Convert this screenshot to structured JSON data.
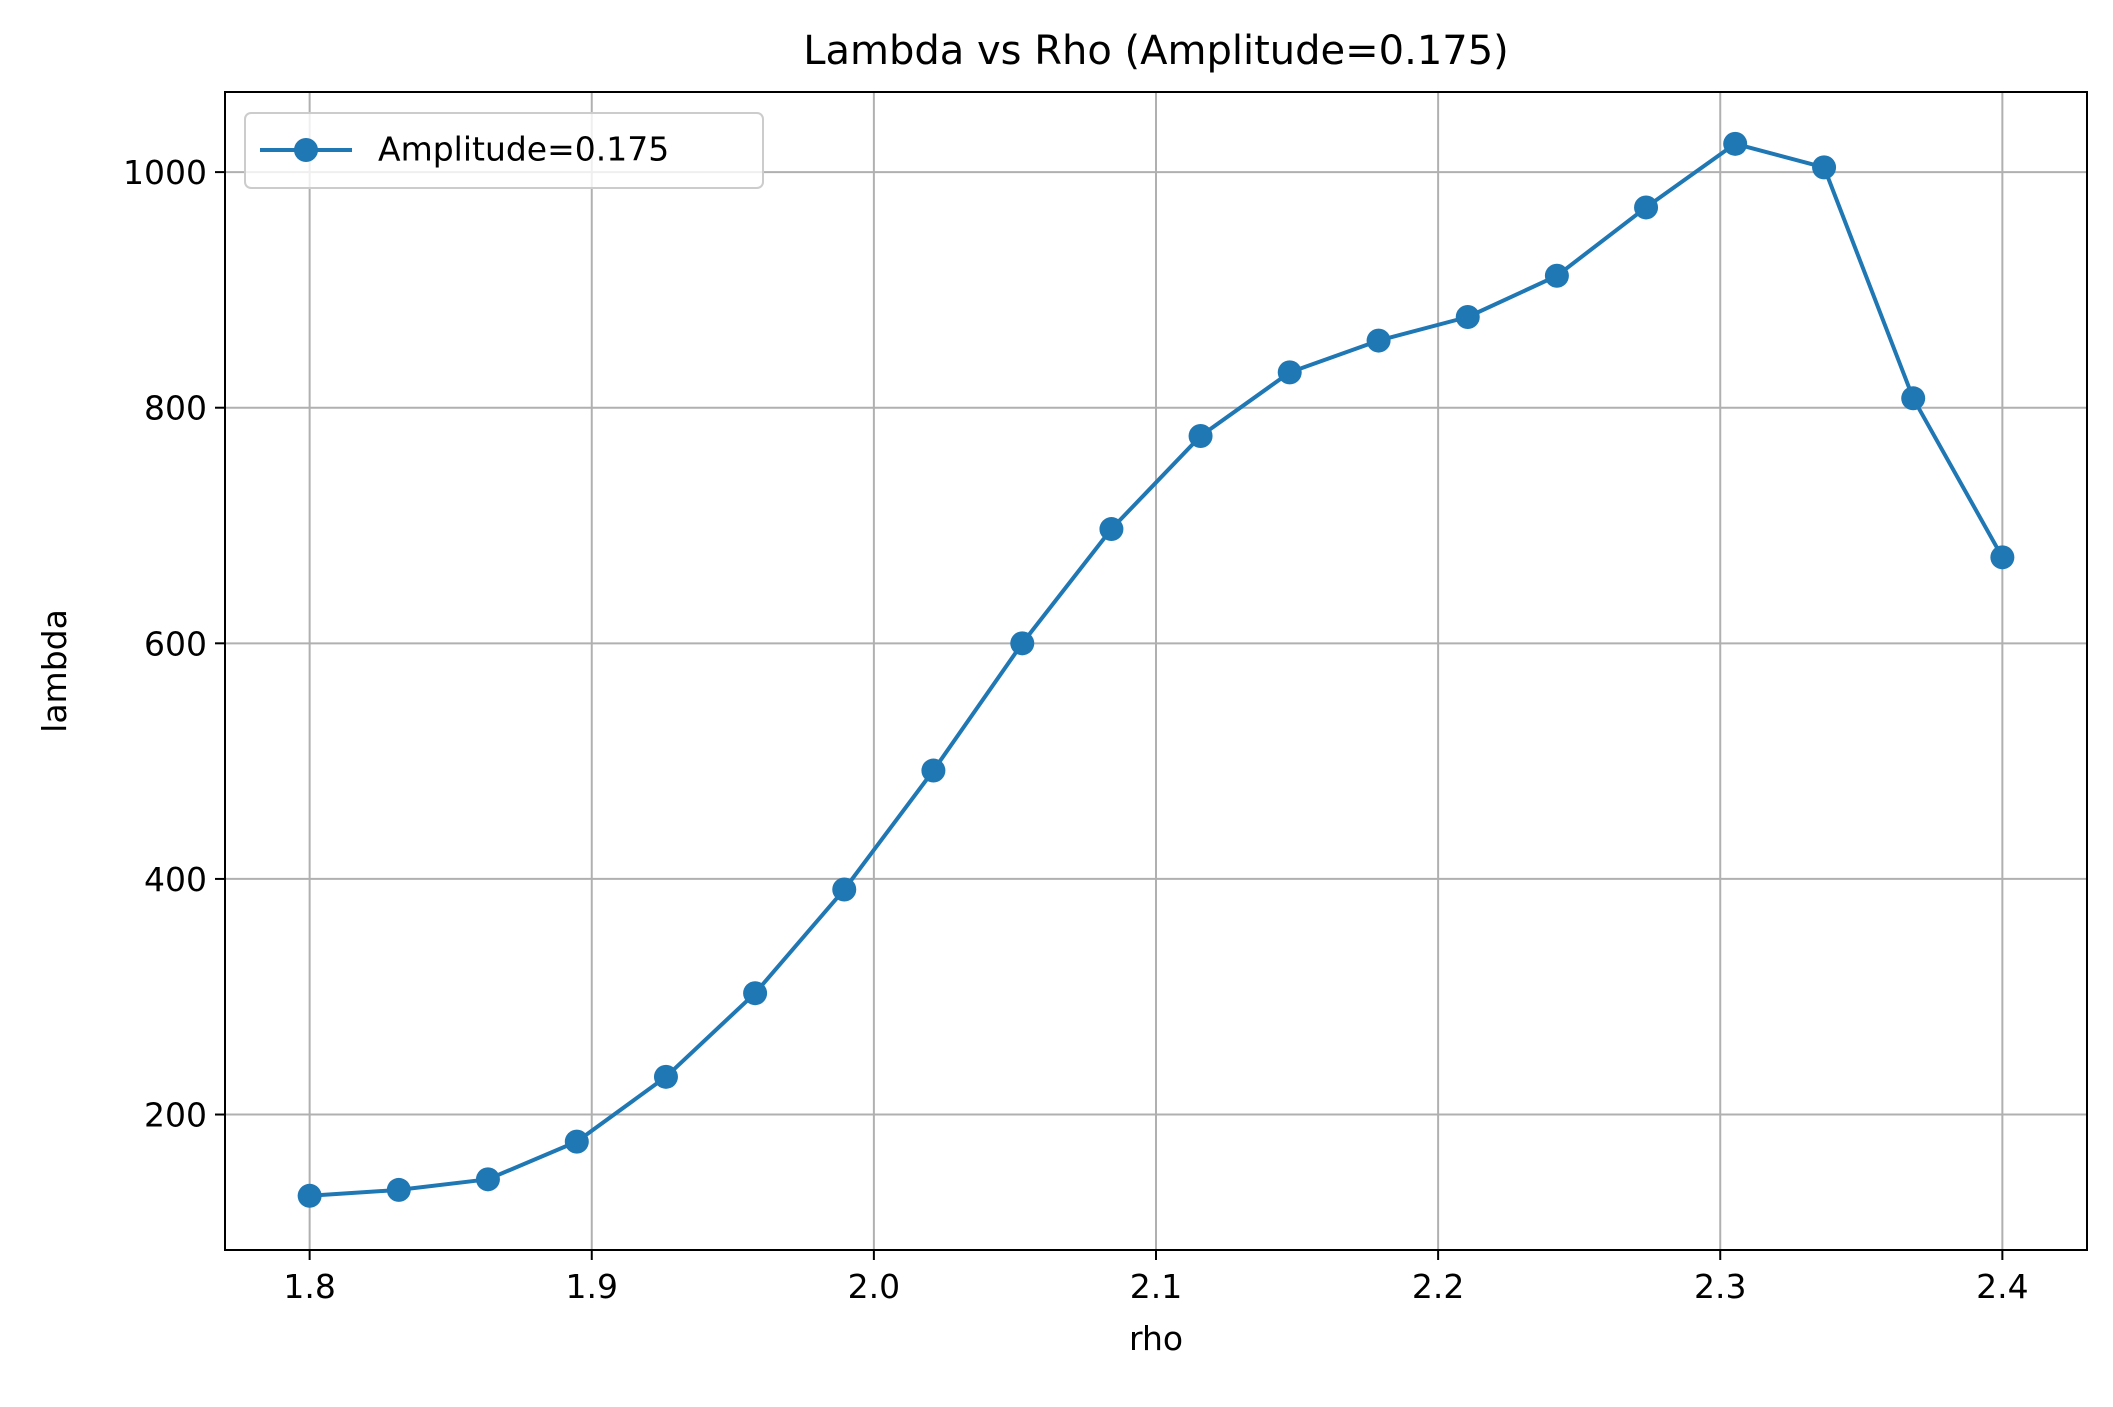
{
  "chart_data": {
    "type": "line",
    "title": "Lambda vs Rho (Amplitude=0.175)",
    "xlabel": "rho",
    "ylabel": "lambda",
    "xlim": [
      1.77,
      2.43
    ],
    "ylim": [
      85,
      1068
    ],
    "xticks": [
      1.8,
      1.9,
      2.0,
      2.1,
      2.2,
      2.3,
      2.4
    ],
    "xtick_labels": [
      "1.8",
      "1.9",
      "2.0",
      "2.1",
      "2.2",
      "2.3",
      "2.4"
    ],
    "yticks": [
      200,
      400,
      600,
      800,
      1000
    ],
    "ytick_labels": [
      "200",
      "400",
      "600",
      "800",
      "1000"
    ],
    "grid": true,
    "legend_position": "top-left",
    "series": [
      {
        "name": "Amplitude=0.175",
        "color": "#1f77b4",
        "marker": "circle",
        "x": [
          1.8,
          1.8316,
          1.8632,
          1.8947,
          1.9263,
          1.9579,
          1.9895,
          2.0211,
          2.0526,
          2.0842,
          2.1158,
          2.1474,
          2.1789,
          2.2105,
          2.2421,
          2.2737,
          2.3053,
          2.3368,
          2.3684,
          2.4
        ],
        "y": [
          131,
          136,
          145,
          177,
          232,
          303,
          391,
          492,
          600,
          697,
          776,
          830,
          857,
          877,
          912,
          970,
          1024,
          1004,
          808,
          673
        ]
      }
    ]
  }
}
